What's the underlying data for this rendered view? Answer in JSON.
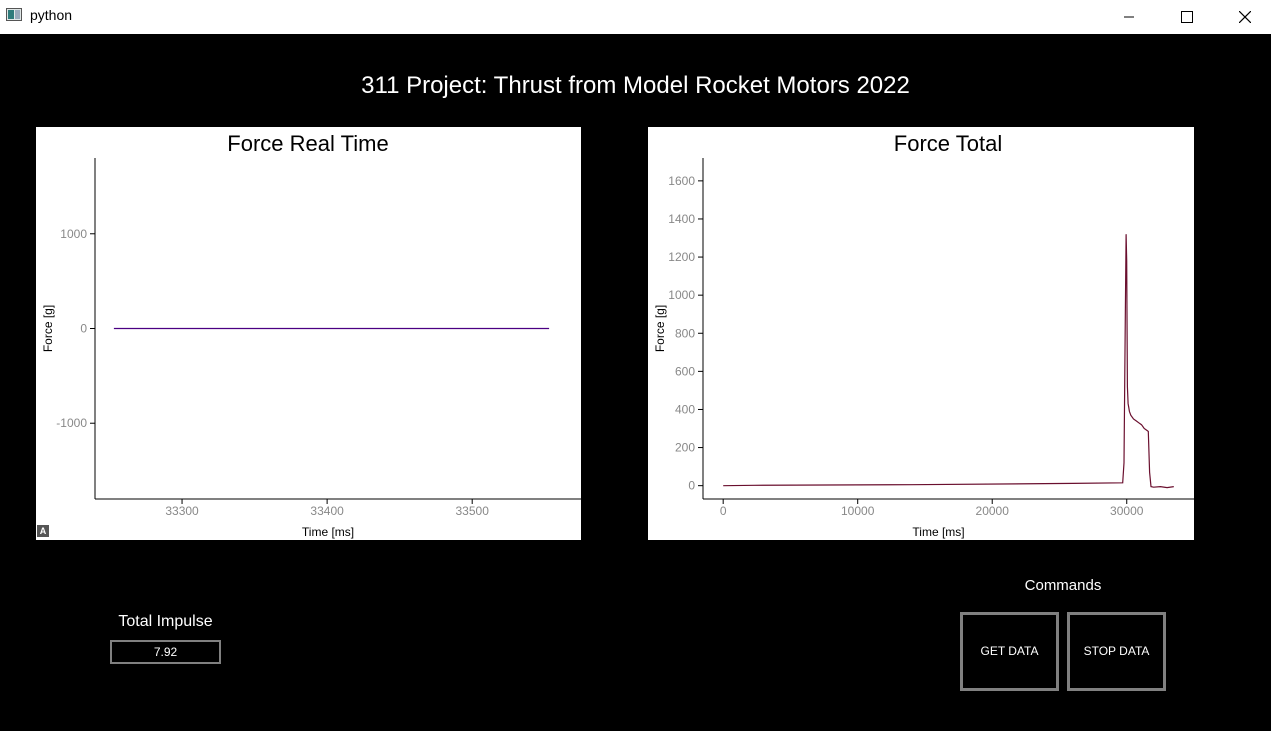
{
  "window": {
    "title": "python"
  },
  "app": {
    "title": "311 Project: Thrust from Model Rocket Motors 2022"
  },
  "impulse": {
    "label": "Total Impulse",
    "value": "7.92"
  },
  "commands": {
    "label": "Commands",
    "get_label": "GET DATA",
    "stop_label": "STOP DATA"
  },
  "chart_data": [
    {
      "type": "line",
      "title": "Force Real Time",
      "xlabel": "Time [ms]",
      "ylabel": "Force [g]",
      "xlim": [
        33240,
        33575
      ],
      "ylim": [
        -1800,
        1800
      ],
      "xticks": [
        33300,
        33400,
        33500
      ],
      "yticks": [
        -1000,
        0,
        1000
      ],
      "grid": false,
      "line_color": "#4b0082",
      "series": [
        {
          "x": [
            33253,
            33300,
            33350,
            33400,
            33450,
            33500,
            33553
          ],
          "y": [
            0,
            0,
            0,
            0,
            0,
            0,
            0
          ]
        }
      ]
    },
    {
      "type": "line",
      "title": "Force Total",
      "xlabel": "Time [ms]",
      "ylabel": "Force [g]",
      "xlim": [
        -1500,
        35000
      ],
      "ylim": [
        -70,
        1720
      ],
      "xticks": [
        0,
        10000,
        20000,
        30000
      ],
      "yticks": [
        0,
        200,
        400,
        600,
        800,
        1000,
        1200,
        1400,
        1600
      ],
      "grid": false,
      "line_color": "#6a0f2e",
      "series": [
        {
          "x": [
            0,
            2300,
            14000,
            26000,
            29700,
            29800,
            29900,
            29950,
            30000,
            30050,
            30100,
            30150,
            30200,
            30300,
            30500,
            30700,
            30900,
            31100,
            31300,
            31500,
            31600,
            31700,
            31800,
            32000,
            32500,
            33000,
            33500
          ],
          "y": [
            0,
            2,
            5,
            12,
            15,
            120,
            940,
            1320,
            1180,
            520,
            430,
            410,
            390,
            370,
            350,
            340,
            330,
            320,
            300,
            290,
            285,
            70,
            -5,
            -8,
            -5,
            -10,
            -5
          ]
        }
      ]
    }
  ]
}
